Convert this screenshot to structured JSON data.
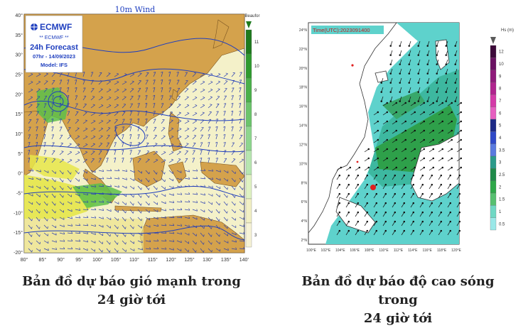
{
  "left_map": {
    "title": "10m Wind",
    "logo_stars": "** ECMWF **",
    "logo_brand": "ECMWF",
    "forecast": "24h Forecast",
    "time": "07hr - 14/09/2023",
    "model": "Model: IFS",
    "legend_unit": "Beaufor",
    "legend_ticks": [
      "11",
      "10",
      "9",
      "8",
      "7",
      "6",
      "5",
      "4",
      "3"
    ],
    "lat_labels": [
      "40°",
      "35°",
      "30°",
      "25°",
      "20°",
      "15°",
      "10°",
      "5°",
      "0°",
      "-5°",
      "-10°",
      "-15°",
      "-20°"
    ],
    "lon_labels": [
      "80°",
      "85°",
      "90°",
      "95°",
      "100°",
      "105°",
      "110°",
      "115°",
      "120°",
      "125°",
      "130°",
      "135°",
      "140°"
    ],
    "colors": {
      "land": "#d4a24c",
      "sea": "#f4f1c9",
      "strong_wind": "#e6e64a",
      "very_strong": "#5cbf4a",
      "isobar": "#1f3fbf"
    }
  },
  "right_map": {
    "time_label": "Time(UTC):2023091400",
    "legend_unit": "Hs (m)",
    "legend_ticks": [
      "12",
      "10",
      "9",
      "8",
      "7",
      "6",
      "5",
      "4",
      "3.5",
      "3",
      "2.5",
      "2",
      "1.5",
      "1",
      "0.5"
    ],
    "legend_colors": [
      "#3d0a3a",
      "#6a1262",
      "#8f1a7a",
      "#b0248e",
      "#d43aa8",
      "#e65fc0",
      "#1d2a86",
      "#2f49c8",
      "#5a7adf",
      "#2a9a8a",
      "#1f8a4a",
      "#2fa84a",
      "#57c070",
      "#6fd8c4",
      "#9ae8e8"
    ],
    "lat_labels": [
      "24°N",
      "22°N",
      "20°N",
      "18°N",
      "16°N",
      "14°N",
      "12°N",
      "10°N",
      "8°N",
      "6°N",
      "4°N",
      "2°N"
    ],
    "lon_labels": [
      "100°E",
      "102°E",
      "104°E",
      "106°E",
      "108°E",
      "110°E",
      "112°E",
      "114°E",
      "116°E",
      "118°E",
      "120°E"
    ],
    "colors": {
      "land": "#ffffff",
      "sea_low": "#5ed2cc",
      "sea_mid": "#3db8a0",
      "sea_high": "#2ea04a"
    }
  },
  "captions": {
    "left_line1": "Bản đồ dự báo gió mạnh trong",
    "left_line2": "24 giờ tới",
    "right_line1": "Bản đồ dự báo độ cao sóng trong",
    "right_line2": "24 giờ tới"
  }
}
